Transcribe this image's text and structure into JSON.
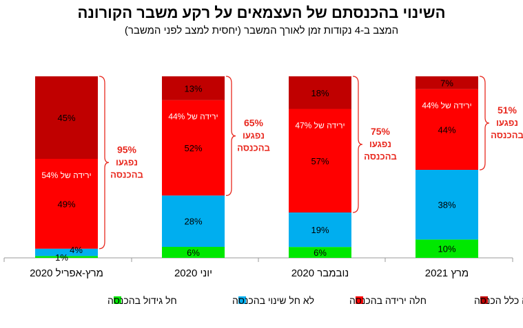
{
  "title": "השינוי בהכנסתם של העצמאים על רקע משבר הקורונה",
  "subtitle": "המצב ב-4 נקודות זמן לאורך המשבר (יחסית למצב לפני המשבר)",
  "colors": {
    "growth": "#00e800",
    "no_change": "#00aeef",
    "decrease": "#ff0000",
    "no_income": "#c00000",
    "brace": "#e8281e",
    "axis": "#999999"
  },
  "chart_data": {
    "type": "bar",
    "stacked": true,
    "categories": [
      "מרץ-אפריל 2020",
      "יוני 2020",
      "נובמבר 2020",
      "מרץ 2021"
    ],
    "series": [
      {
        "name": "חל גידול בהכנסה",
        "color": "#00e800",
        "values": [
          1,
          6,
          6,
          10
        ],
        "labels": [
          "1%",
          "6%",
          "6%",
          "10%"
        ]
      },
      {
        "name": "לא חל שינוי בהכנסה",
        "color": "#00aeef",
        "values": [
          4,
          28,
          19,
          38
        ],
        "labels": [
          "4%",
          "28%",
          "19%",
          "38%"
        ]
      },
      {
        "name": "חלה ירידה בהכנסה",
        "color": "#ff0000",
        "values": [
          49,
          52,
          57,
          44
        ],
        "labels": [
          "49%",
          "52%",
          "57%",
          "44%"
        ]
      },
      {
        "name": "לא הייתה כלל הכנסה",
        "color": "#c00000",
        "values": [
          45,
          13,
          18,
          7
        ],
        "labels": [
          "45%",
          "13%",
          "18%",
          "7%"
        ]
      }
    ],
    "decline_notes": [
      "ירידה של 54%",
      "ירידה של 44%",
      "ירידה של 47%",
      "ירידה של 44%"
    ],
    "affected": [
      {
        "pct": "95%",
        "line1": "נפגעו",
        "line2": "בהכנסה"
      },
      {
        "pct": "65%",
        "line1": "נפגעו",
        "line2": "בהכנסה"
      },
      {
        "pct": "75%",
        "line1": "נפגעו",
        "line2": "בהכנסה"
      },
      {
        "pct": "51%",
        "line1": "נפגעו",
        "line2": "בהכנסה"
      }
    ],
    "legend_position": "bottom",
    "grid": false,
    "ylim": [
      0,
      100
    ]
  }
}
